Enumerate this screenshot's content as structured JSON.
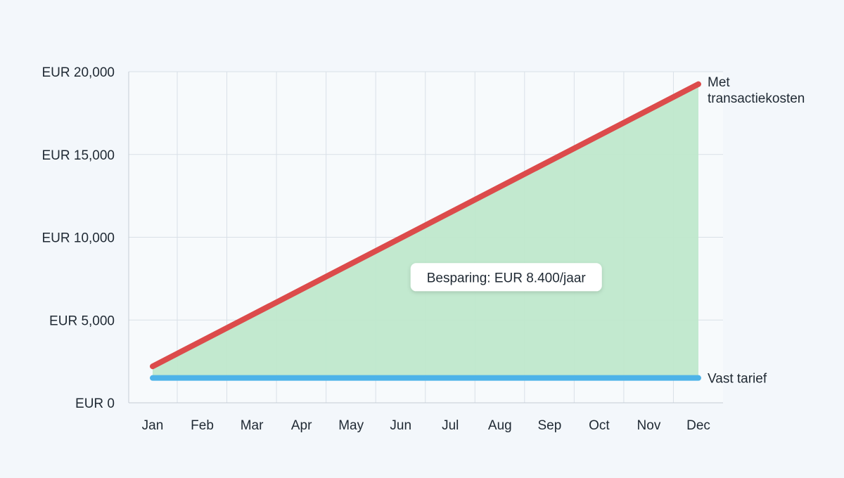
{
  "chart_data": {
    "type": "area",
    "title": "",
    "xlabel": "",
    "ylabel": "",
    "categories": [
      "Jan",
      "Feb",
      "Mar",
      "Apr",
      "May",
      "Jun",
      "Jul",
      "Aug",
      "Sep",
      "Oct",
      "Nov",
      "Dec"
    ],
    "ylim": [
      0,
      20000
    ],
    "y_ticks": [
      0,
      5000,
      10000,
      15000,
      20000
    ],
    "y_tick_labels": [
      "EUR 0",
      "EUR 5,000",
      "EUR 10,000",
      "EUR 15,000",
      "EUR 20,000"
    ],
    "grid": true,
    "series": [
      {
        "name": "Met transactiekosten",
        "name_lines": [
          "Met",
          "transactiekosten"
        ],
        "values": [
          2200,
          3750,
          5300,
          6850,
          8400,
          9950,
          11500,
          13050,
          14600,
          16150,
          17700,
          19250
        ],
        "color": "#dc4b4b"
      },
      {
        "name": "Vast tarief",
        "name_lines": [
          "Vast tarief"
        ],
        "values": [
          1500,
          1500,
          1500,
          1500,
          1500,
          1500,
          1500,
          1500,
          1500,
          1500,
          1500,
          1500
        ],
        "color": "#4db3e8"
      }
    ],
    "fill_between_color": "#bfe8cc",
    "annotation": {
      "text": "Besparing: EUR 8.400/jaar",
      "x": "Jun",
      "y": 7800
    }
  }
}
